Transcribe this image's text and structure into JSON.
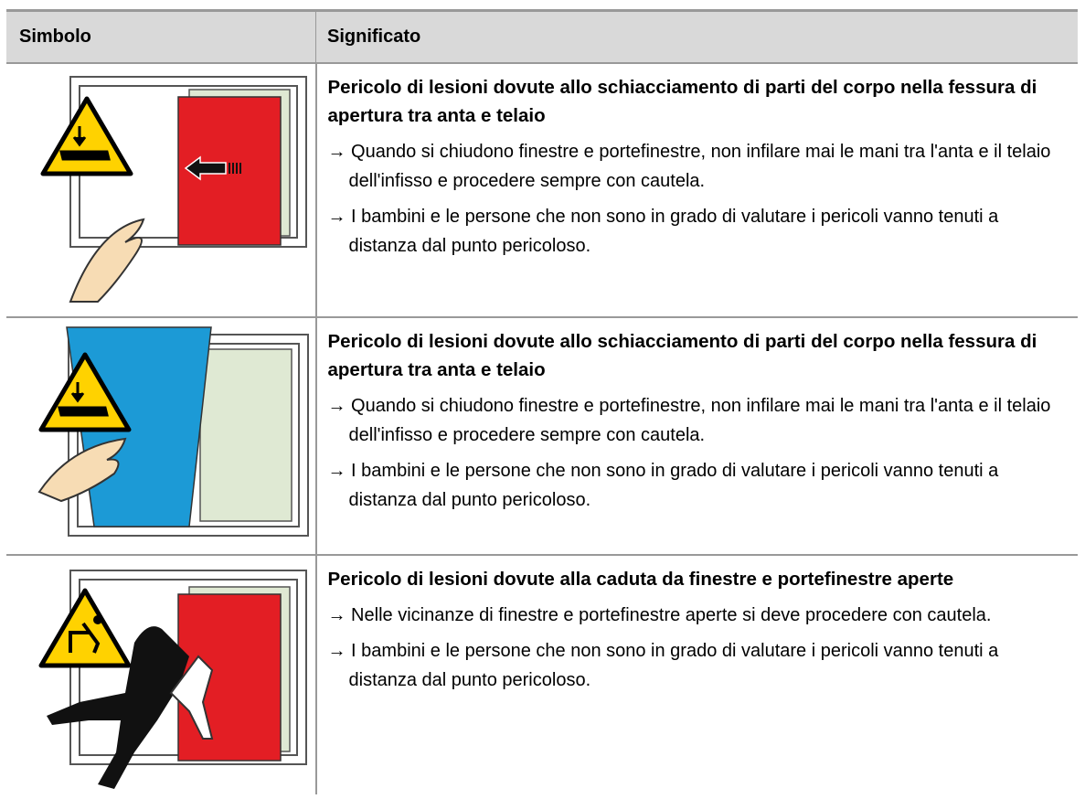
{
  "table": {
    "header": [
      "Simbolo",
      "Significato"
    ],
    "rows": [
      {
        "title": "Pericolo di lesioni dovute allo schiacciamento di parti del corpo nella fessura di apertura tra anta e telaio",
        "bullets": [
          "→ Quando si chiudono finestre e portefinestre, non infilare mai le mani tra l'anta e il telaio dell'infisso e procedere sempre con cautela.",
          "→ I bambini e le persone che non sono in grado di valutare i pericoli vanno tenuti a distanza dal punto pericoloso."
        ]
      },
      {
        "title": "Pericolo di lesioni dovute allo schiacciamento di parti del corpo nella fessura di apertura tra anta e telaio",
        "bullets": [
          "→ Quando si chiudono finestre e portefinestre, non infilare mai le mani tra l'anta e il telaio dell'infisso e procedere sempre con cautela.",
          "→ I bambini e le persone che non sono in grado di valutare i pericoli vanno tenuti a distanza dal punto pericoloso."
        ]
      },
      {
        "title": "Pericolo di lesioni dovute alla caduta da finestre e portefinestre aperte",
        "bullets": [
          "→ Nelle vicinanze di finestre e portefinestre aperte si deve procedere con cautela.",
          "→ I bambini e le persone che non sono in grado di valutare i pericoli vanno tenuti a distanza dal punto pericoloso."
        ]
      }
    ]
  }
}
